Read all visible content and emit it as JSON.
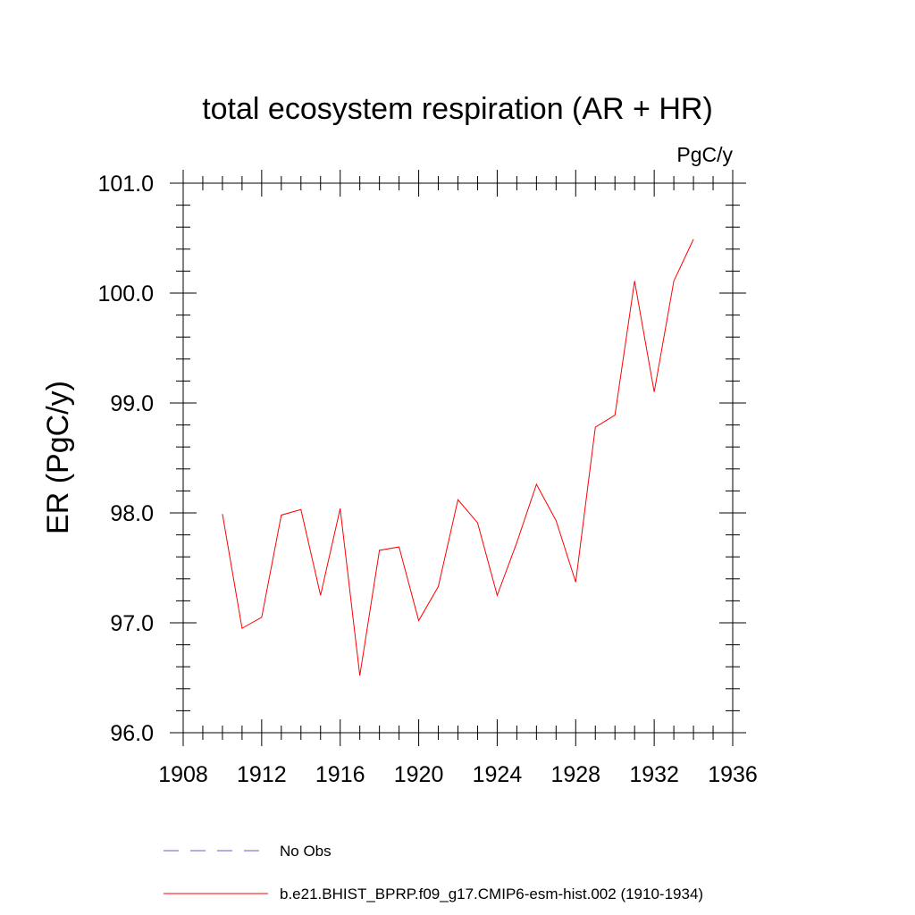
{
  "chart_data": {
    "type": "line",
    "title": "total ecosystem respiration (AR + HR)",
    "units": "PgC/y",
    "xlabel": "",
    "ylabel": "ER  (PgC/y)",
    "xlim": [
      1908,
      1936
    ],
    "ylim": [
      96.0,
      101.0
    ],
    "xticks": [
      1908,
      1912,
      1916,
      1920,
      1924,
      1928,
      1932,
      1936
    ],
    "yticks": [
      96.0,
      97.0,
      98.0,
      99.0,
      100.0,
      101.0
    ],
    "x_minor_step": 1,
    "y_minor_step": 0.2,
    "grid": false,
    "legend_position": "bottom",
    "series": [
      {
        "name": "b.e21.BHIST_BPRP.f09_g17.CMIP6-esm-hist.002 (1910-1934)",
        "color": "#ff0000",
        "dash": "solid",
        "x": [
          1910,
          1911,
          1912,
          1913,
          1914,
          1915,
          1916,
          1917,
          1918,
          1919,
          1920,
          1921,
          1922,
          1923,
          1924,
          1925,
          1926,
          1927,
          1928,
          1929,
          1930,
          1931,
          1932,
          1933,
          1934
        ],
        "values": [
          97.99,
          96.95,
          97.05,
          97.98,
          98.03,
          97.25,
          98.04,
          96.52,
          97.66,
          97.69,
          97.02,
          97.33,
          98.12,
          97.91,
          97.25,
          97.73,
          98.26,
          97.93,
          97.37,
          98.78,
          98.89,
          100.11,
          99.1,
          100.11,
          100.49
        ]
      }
    ],
    "legend": [
      {
        "label": "No Obs",
        "color": "#6a5acd",
        "dash": "dashed"
      },
      {
        "label": "b.e21.BHIST_BPRP.f09_g17.CMIP6-esm-hist.002 (1910-1934)",
        "color": "#ff0000",
        "dash": "solid"
      }
    ]
  }
}
